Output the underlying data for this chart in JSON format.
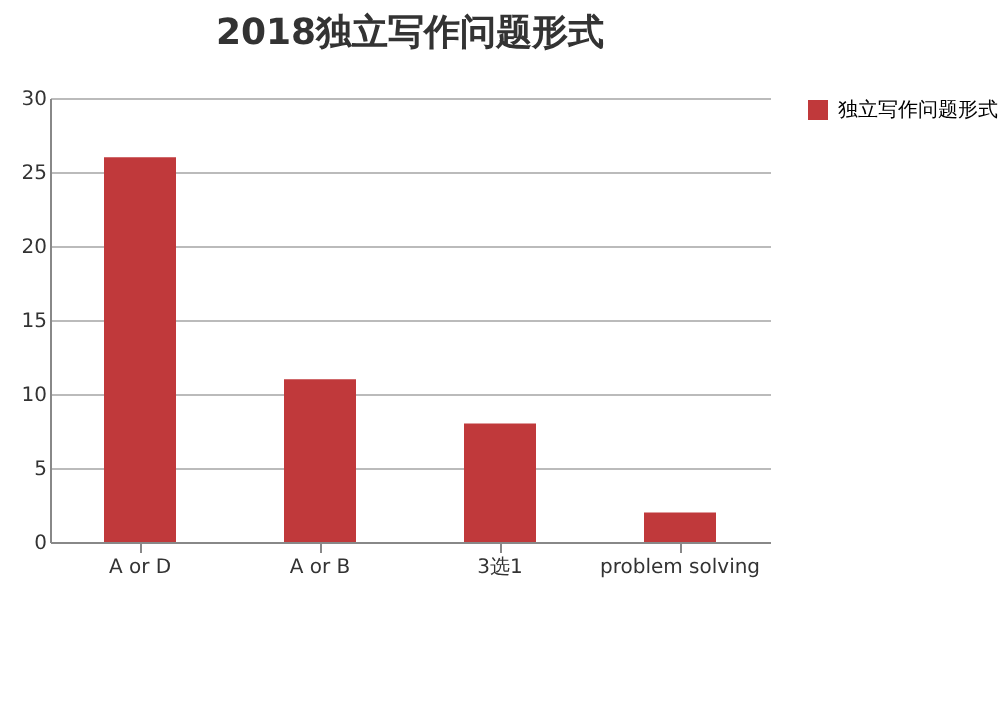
{
  "chart_data": {
    "type": "bar",
    "title": "2018独立写作问题形式",
    "categories": [
      "A or D",
      "A or B",
      "3选1",
      "problem solving"
    ],
    "series": [
      {
        "name": "独立写作问题形式",
        "color": "#c0393b",
        "values": [
          26,
          11,
          8,
          2
        ]
      }
    ],
    "ylim": [
      0,
      30
    ],
    "yticks": [
      0,
      5,
      10,
      15,
      20,
      25,
      30
    ],
    "grid": "y",
    "legend": "right"
  }
}
